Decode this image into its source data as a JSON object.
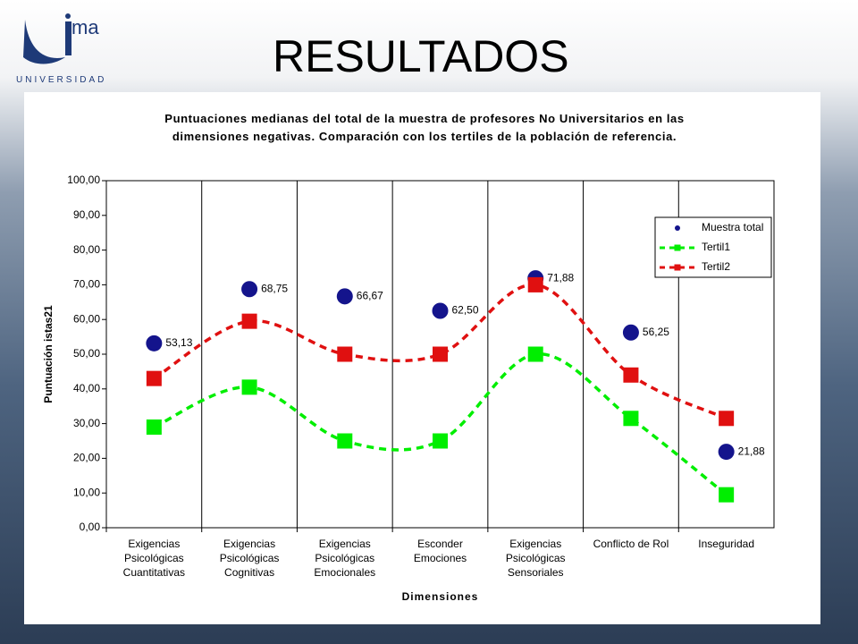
{
  "slide": {
    "title": "RESULTADOS",
    "logo_text": "ma",
    "university": "UNIVERSIDAD"
  },
  "chart_data": {
    "type": "line",
    "title": "Puntuaciones medianas del total de la muestra de profesores No Universitarios en las dimensiones negativas. Comparación con los tertiles de la población de referencia.",
    "x_label": "Dimensiones",
    "y_label": "Puntuación istas21",
    "categories": [
      "Exigencias Psicológicas Cuantitativas",
      "Exigencias Psicológicas Cognitivas",
      "Exigencias Psicológicas Emocionales",
      "Esconder Emociones",
      "Exigencias Psicológicas Sensoriales",
      "Conflicto de Rol",
      "Inseguridad"
    ],
    "series": [
      {
        "name": "Muestra total",
        "color": "#14148c",
        "style": "markers",
        "marker": "circle",
        "values": [
          53.13,
          68.75,
          66.67,
          62.5,
          71.88,
          56.25,
          21.88
        ],
        "value_labels": [
          "53,13",
          "68,75",
          "66,67",
          "62,50",
          "71,88",
          "56,25",
          "21,88"
        ]
      },
      {
        "name": "Tertil1",
        "color": "#00ee00",
        "style": "dashed",
        "marker": "square",
        "values": [
          29,
          40.5,
          25,
          25,
          50,
          31.5,
          9.5
        ]
      },
      {
        "name": "Tertil2",
        "color": "#e01010",
        "style": "dashed",
        "marker": "square",
        "values": [
          43,
          59.5,
          50,
          50,
          70,
          44,
          31.5
        ]
      }
    ],
    "ylim": [
      0,
      100
    ],
    "yticks": [
      {
        "value": 0,
        "label": "0,00"
      },
      {
        "value": 10,
        "label": "10,00"
      },
      {
        "value": 20,
        "label": "20,00"
      },
      {
        "value": 30,
        "label": "30,00"
      },
      {
        "value": 40,
        "label": "40,00"
      },
      {
        "value": 50,
        "label": "50,00"
      },
      {
        "value": 60,
        "label": "60,00"
      },
      {
        "value": 70,
        "label": "70,00"
      },
      {
        "value": 80,
        "label": "80,00"
      },
      {
        "value": 90,
        "label": "90,00"
      },
      {
        "value": 100,
        "label": "100,00"
      }
    ],
    "legend": "upper right",
    "category_separators": true
  }
}
